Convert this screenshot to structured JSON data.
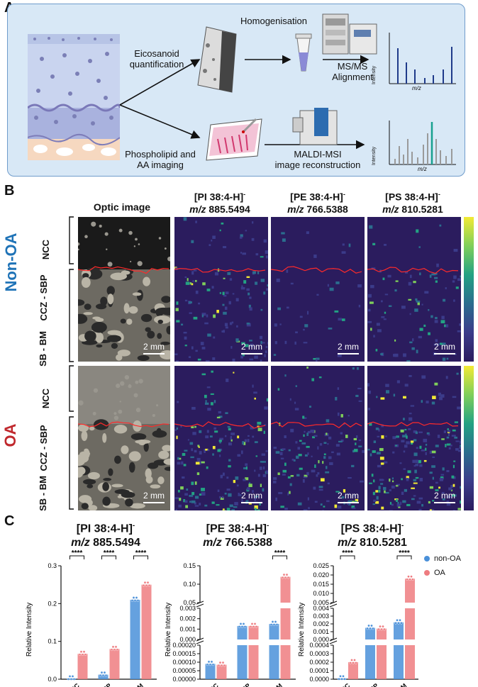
{
  "panel_a": {
    "label": "A",
    "homogenisation": "Homogenisation",
    "eicosanoid_line1": "Eicosanoid",
    "eicosanoid_line2": "quantification",
    "msms_line1": "MS/MS",
    "msms_line2": "Alignment",
    "phospho_line1": "Phospholipid and",
    "phospho_line2": "AA imaging",
    "maldi_line1": "MALDI-MSI",
    "maldi_line2": "image reconstruction",
    "axis_intensity": "Intensity",
    "axis_mz": "m/z",
    "colors": {
      "blue_bars": "#1f3a8a",
      "grey_bars": "#9a9a9a",
      "teal_bar": "#17a08f",
      "panel_bg": "#d8e8f6",
      "panel_border": "#6f9ccb"
    }
  },
  "panel_b": {
    "label": "B",
    "col_optic": "Optic image",
    "col1_line1": "[PI 38:4-H]",
    "col1_line2_mz": "m/z",
    "col1_line2_val": " 885.5494",
    "col2_line1": "[PE 38:4-H]",
    "col2_line2_mz": "m/z",
    "col2_line2_val": " 766.5388",
    "col3_line1": "[PS 38:4-H]",
    "col3_line2_mz": "m/z",
    "col3_line2_val": " 810.5281",
    "superscript": "-",
    "group1": "Non-OA",
    "group2": "OA",
    "zone_ncc": "NCC",
    "zone_ccz": "CCZ - SBP",
    "zone_sb": "SB - BM",
    "scale": "2 mm",
    "colors": {
      "nonoa": "#1f73b7",
      "oa": "#c0282d",
      "tidemark": "#ff2a2a"
    }
  },
  "panel_c": {
    "label": "C",
    "legend": [
      {
        "name": "non-OA",
        "color": "#4a90d9"
      },
      {
        "name": "OA",
        "color": "#ee7c80"
      }
    ],
    "ylabel": "Relative Intensity",
    "significance": "****"
  },
  "chart_data": [
    {
      "type": "bar",
      "title": "[PI 38:4-H]- m/z 885.5494",
      "title_line1": "[PI 38:4-H]",
      "title_mz": "m/z",
      "title_val": " 885.5494",
      "categories": [
        "NCC",
        "CCZ & SBP",
        "SB & BM"
      ],
      "series": [
        {
          "name": "non-OA",
          "values": [
            0.002,
            0.012,
            0.21
          ]
        },
        {
          "name": "OA",
          "values": [
            0.067,
            0.08,
            0.25
          ]
        }
      ],
      "ylabel": "Relative Intensity",
      "ylim": [
        0,
        0.3
      ],
      "yticks": [
        "0.0",
        "0.1",
        "0.2",
        "0.3"
      ]
    },
    {
      "type": "bar",
      "title": "[PE 38:4-H]- m/z 766.5388",
      "title_line1": "[PE 38:4-H]",
      "title_mz": "m/z",
      "title_val": " 766.5388",
      "categories": [
        "NCC",
        "CCZ & SBP",
        "SB & BM"
      ],
      "series": [
        {
          "name": "non-OA",
          "values": [
            9e-05,
            0.0013,
            0.0015
          ]
        },
        {
          "name": "OA",
          "values": [
            8.5e-05,
            0.0013,
            0.12
          ]
        }
      ],
      "ylabel": "Relative Intensity",
      "segments": [
        {
          "ylim": [
            0.0,
            0.0002
          ]
        },
        {
          "ylim": [
            0.0,
            0.003
          ]
        },
        {
          "ylim": [
            0.05,
            0.15
          ]
        }
      ],
      "yticks_bottom": [
        "0.00000",
        "0.00005",
        "0.00010",
        "0.00015",
        "0.00020"
      ],
      "yticks_mid": [
        "0.000",
        "0.001",
        "0.002",
        "0.003"
      ],
      "yticks_top": [
        "0.05",
        "0.10",
        "0.15"
      ]
    },
    {
      "type": "bar",
      "title": "[PS 38:4-H]- m/z 810.5281",
      "title_line1": "[PS 38:4-H]",
      "title_mz": "m/z",
      "title_val": " 810.5281",
      "categories": [
        "NCC",
        "CCZ & SBP",
        "SB & BM"
      ],
      "series": [
        {
          "name": "non-OA",
          "values": [
            1e-05,
            0.0015,
            0.0022
          ]
        },
        {
          "name": "OA",
          "values": [
            0.0002,
            0.0014,
            0.018
          ]
        }
      ],
      "ylabel": "Relative Intensity",
      "segments": [
        {
          "ylim": [
            0.0,
            0.0004
          ]
        },
        {
          "ylim": [
            0.0,
            0.004
          ]
        },
        {
          "ylim": [
            0.005,
            0.025
          ]
        }
      ],
      "yticks_bottom": [
        "0.0000",
        "0.0001",
        "0.0002",
        "0.0003",
        "0.0004"
      ],
      "yticks_mid": [
        "0.000",
        "0.001",
        "0.002",
        "0.003",
        "0.004"
      ],
      "yticks_top": [
        "0.005",
        "0.010",
        "0.015",
        "0.020",
        "0.025"
      ]
    }
  ]
}
